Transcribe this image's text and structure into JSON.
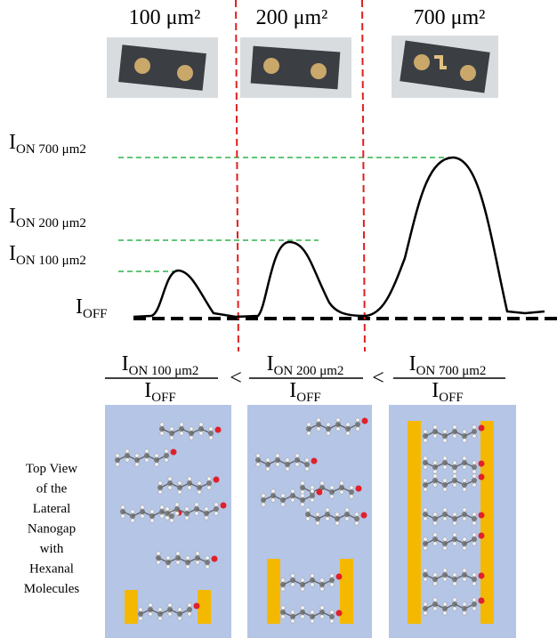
{
  "areas": [
    "100 μm²",
    "200 μm²",
    "700 μm²"
  ],
  "levels": [
    {
      "main": "I",
      "sub": "ON 700 μm2"
    },
    {
      "main": "I",
      "sub": "ON 200 μm2"
    },
    {
      "main": "I",
      "sub": "ON 100 μm2"
    },
    {
      "main": "I",
      "sub": "OFF"
    }
  ],
  "ratios": [
    {
      "num_main": "I",
      "num_sub": "ON 100 μm2",
      "den_main": "I",
      "den_sub": "OFF"
    },
    {
      "num_main": "I",
      "num_sub": "ON 200 μm2",
      "den_main": "I",
      "den_sub": "OFF"
    },
    {
      "num_main": "I",
      "num_sub": "ON 700 μm2",
      "den_main": "I",
      "den_sub": "OFF"
    }
  ],
  "comparators": [
    "<",
    "<"
  ],
  "side_text": [
    "Top View",
    "of the",
    "Lateral",
    "Nanogap",
    "with",
    "Hexanal",
    "Molecules"
  ]
}
